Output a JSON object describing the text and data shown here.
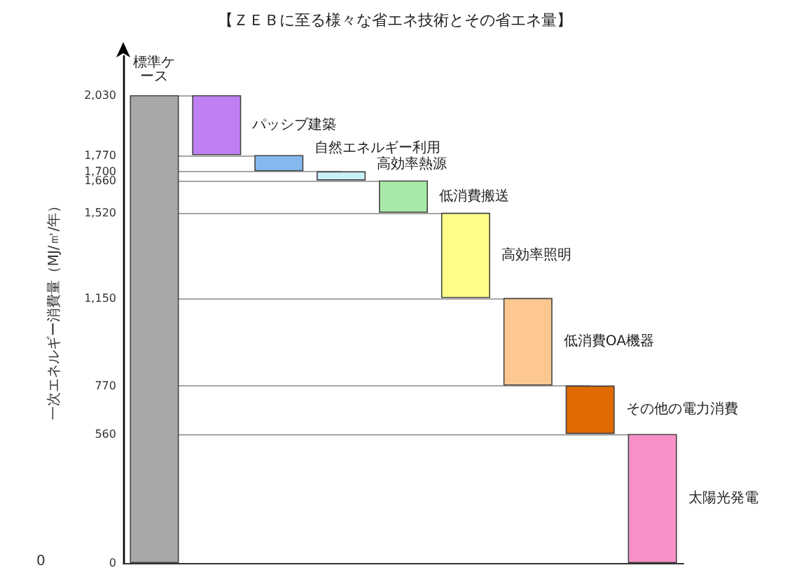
{
  "chart_data": {
    "type": "bar",
    "title": "【ＺＥＢに至る様々な省エネ技術とその省エネ量】",
    "ylabel": "一次エネルギー消費量（MJ/㎡/年）",
    "categories": [
      null,
      null,
      null,
      null,
      null,
      null,
      null,
      null,
      null
    ],
    "values": [
      2030,
      260,
      70,
      40,
      140,
      370,
      380,
      210,
      560
    ],
    "base": [
      0,
      1770,
      1700,
      1660,
      1520,
      1150,
      770,
      560,
      0
    ],
    "colors": [
      "#a8a8a8",
      "#c080f4",
      "#84b8ee",
      "#c8f2f6",
      "#a8e8a8",
      "#ffff88",
      "#fcc890",
      "#e06a00",
      "#f890c8"
    ],
    "ylim": [
      0,
      2200
    ],
    "tick_labels": "y",
    "grid": false,
    "yticks": [
      {
        "value": 2030,
        "label": "2,030"
      },
      {
        "value": 1770,
        "label": "1,770"
      },
      {
        "value": 1700,
        "label": "1,700"
      },
      {
        "value": 1660,
        "label": "1,660"
      },
      {
        "value": 1520,
        "label": "1,520"
      },
      {
        "value": 1150,
        "label": "1,150"
      },
      770,
      560,
      0
    ],
    "annotations": [
      "標準ケース",
      "パッシブ建築",
      "自然エネルギー利用",
      "高効率熱源",
      "低消費搬送",
      "高効率照明",
      "低消費OA機器",
      "その他の電力消費",
      "太陽光発電",
      "0"
    ],
    "ref_lines": [
      {
        "axis": "y",
        "value": 2030
      },
      {
        "axis": "y",
        "value": 1770
      },
      {
        "axis": "y",
        "value": 1700
      },
      {
        "axis": "y",
        "value": 1660
      },
      {
        "axis": "y",
        "value": 1520
      },
      {
        "axis": "y",
        "value": 1150
      },
      {
        "axis": "y",
        "value": 770
      },
      {
        "axis": "y",
        "value": 560
      }
    ]
  }
}
